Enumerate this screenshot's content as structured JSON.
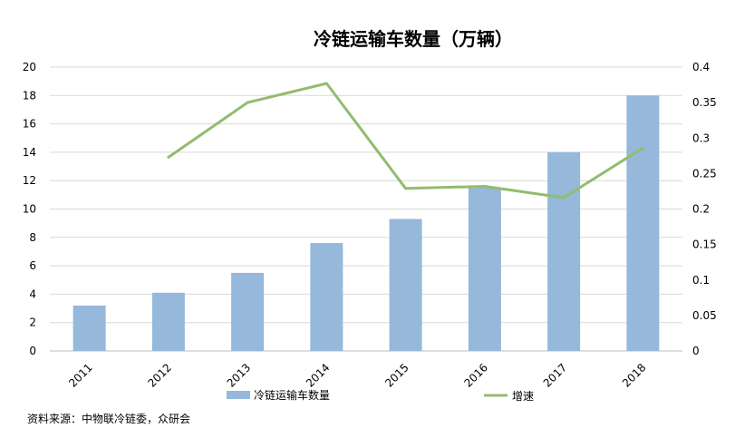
{
  "chart_data": {
    "type": "bar",
    "title": "冷链运输车数量（万辆）",
    "categories": [
      "2011",
      "2012",
      "2013",
      "2014",
      "2015",
      "2016",
      "2017",
      "2018"
    ],
    "series": [
      {
        "name": "冷链运输车数量",
        "type": "bar",
        "axis": "left",
        "color": "#95b8db",
        "values": [
          3.2,
          4.1,
          5.5,
          7.6,
          9.3,
          11.5,
          14.0,
          18.0
        ]
      },
      {
        "name": "增速",
        "type": "line",
        "axis": "right",
        "color": "#93bc6f",
        "values": [
          null,
          0.273,
          0.35,
          0.377,
          0.229,
          0.232,
          0.216,
          0.286
        ]
      }
    ],
    "y_left": {
      "ylim": [
        0,
        20
      ],
      "ticks": [
        "0",
        "2",
        "4",
        "6",
        "8",
        "10",
        "12",
        "14",
        "16",
        "18",
        "20"
      ]
    },
    "y_right": {
      "ylim": [
        0,
        0.4
      ],
      "ticks": [
        "0",
        "0.05",
        "0.1",
        "0.15",
        "0.2",
        "0.25",
        "0.3",
        "0.35",
        "0.4"
      ]
    },
    "grid": true,
    "legend": "bottom",
    "source": "资料来源：中物联冷链委，众研会"
  }
}
